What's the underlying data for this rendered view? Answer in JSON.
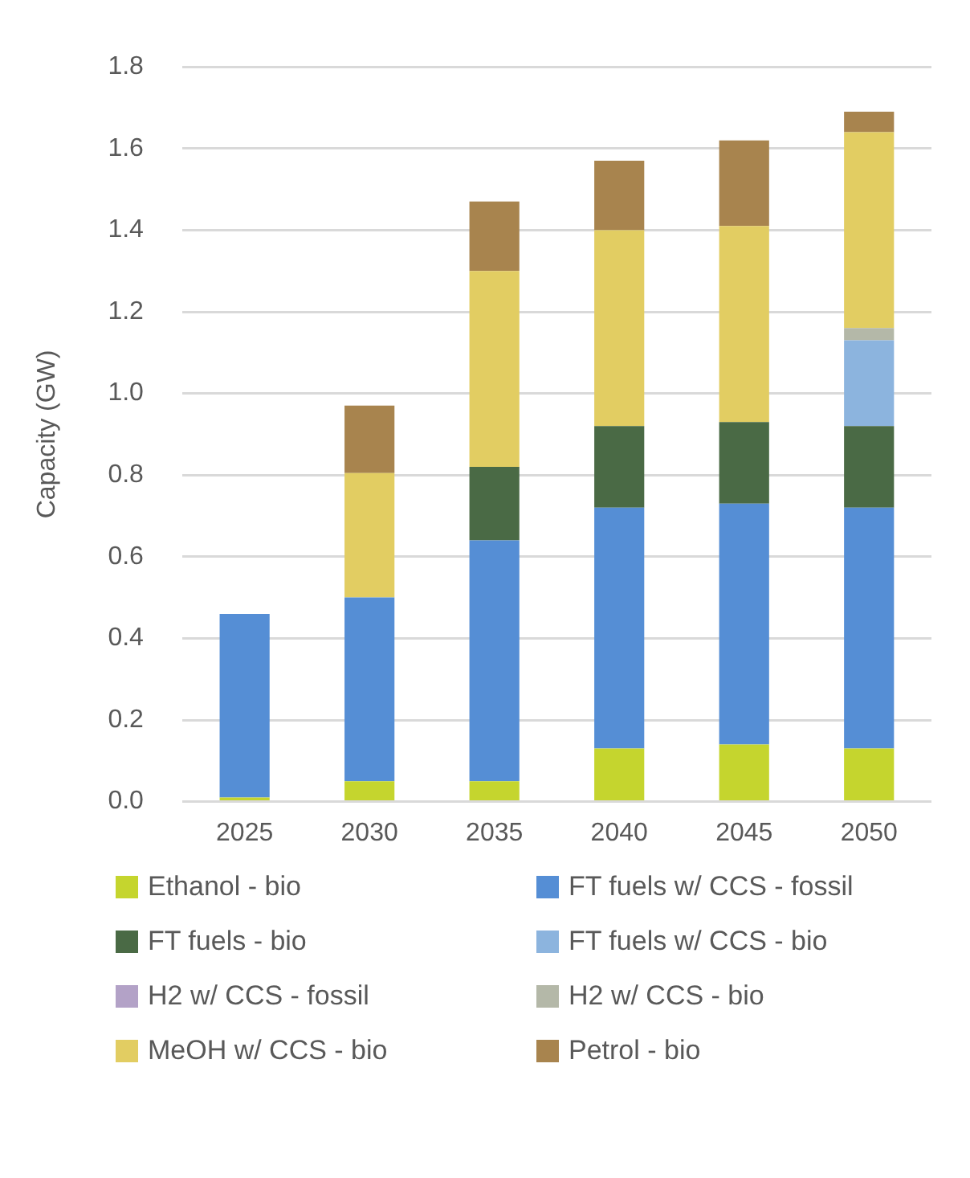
{
  "chart_data": {
    "type": "bar",
    "ylabel": "Capacity (GW)",
    "categories": [
      "2025",
      "2030",
      "2035",
      "2040",
      "2045",
      "2050"
    ],
    "stacked": true,
    "ylim": [
      0,
      1.8
    ],
    "yticks": [
      {
        "value": 0,
        "label": "0.0"
      },
      {
        "value": 0.2,
        "label": "0.2"
      },
      {
        "value": 0.4,
        "label": "0.4"
      },
      {
        "value": 0.6,
        "label": "0.6"
      },
      {
        "value": 0.8,
        "label": "0.8"
      },
      {
        "value": 1,
        "label": "1.0"
      },
      {
        "value": 1.2,
        "label": "1.2"
      },
      {
        "value": 1.4,
        "label": "1.4"
      },
      {
        "value": 1.6,
        "label": "1.6"
      },
      {
        "value": 1.8,
        "label": "1.8"
      }
    ],
    "grid": "y",
    "legend": "bottom",
    "series": [
      {
        "name": "Ethanol - bio",
        "color": "#c5d52e",
        "values": [
          0.01,
          0.05,
          0.05,
          0.13,
          0.14,
          0.13
        ]
      },
      {
        "name": "FT fuels w/ CCS - fossil",
        "color": "#558ed5",
        "values": [
          0.45,
          0.45,
          0.59,
          0.59,
          0.59,
          0.59
        ]
      },
      {
        "name": "FT fuels - bio",
        "color": "#4a6a45",
        "values": [
          0,
          0,
          0.18,
          0.2,
          0.2,
          0.2
        ]
      },
      {
        "name": "FT fuels w/ CCS - bio",
        "color": "#8cb4de",
        "values": [
          0,
          0,
          0,
          0,
          0,
          0.21
        ]
      },
      {
        "name": "H2 w/ CCS - fossil",
        "color": "#b3a2c7",
        "values": [
          0,
          0,
          0,
          0,
          0,
          0
        ]
      },
      {
        "name": "H2 w/ CCS - bio",
        "color": "#b4b8a8",
        "values": [
          0,
          0,
          0,
          0,
          0,
          0.03
        ]
      },
      {
        "name": "MeOH w/ CCS - bio",
        "color": "#e2cd62",
        "values": [
          0,
          0.305,
          0.48,
          0.48,
          0.48,
          0.48
        ]
      },
      {
        "name": "Petrol - bio",
        "color": "#a8844e",
        "values": [
          0,
          0.165,
          0.17,
          0.17,
          0.21,
          0.05
        ]
      }
    ]
  }
}
